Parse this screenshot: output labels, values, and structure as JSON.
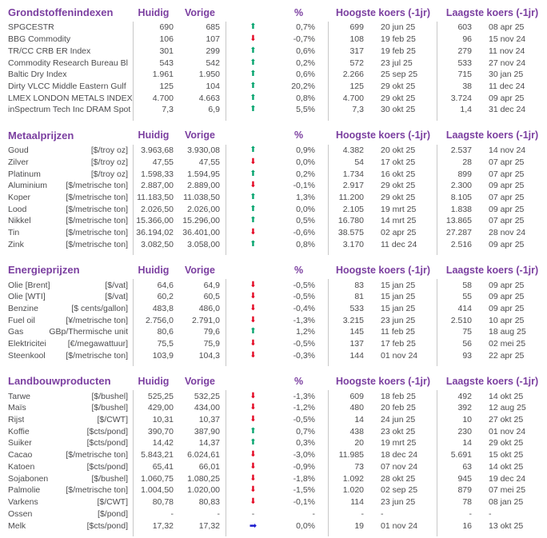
{
  "columns": {
    "huidig": "Huidig",
    "vorige": "Vorige",
    "pct": "%",
    "hoogste": "Hoogste koers (-1jr)",
    "laagste": "Laagste koers (-1jr)"
  },
  "icons": {
    "up": "⬆",
    "down": "⬇",
    "flat": "➡",
    "none": "-"
  },
  "colors": {
    "header_purple": "#7b3fa0",
    "text_gray": "#4c4c4e",
    "up_green": "#00a36c",
    "down_red": "#e3001e",
    "flat_blue": "#1a1ace",
    "divider_gray": "#c8c8c8"
  },
  "sections": [
    {
      "title": "Grondstoffenindexen",
      "rows": [
        {
          "name": "SPGCESTR",
          "unit": "",
          "huidig": "690",
          "vorige": "685",
          "dir": "up",
          "pct": "0,7%",
          "hi": "699",
          "hi_date": "20 jun 25",
          "lo": "603",
          "lo_date": "08 apr 25"
        },
        {
          "name": "BBG Commodity",
          "unit": "",
          "huidig": "106",
          "vorige": "107",
          "dir": "down",
          "pct": "-0,7%",
          "hi": "108",
          "hi_date": "19 feb 25",
          "lo": "96",
          "lo_date": "15 nov 24"
        },
        {
          "name": "TR/CC CRB ER Index",
          "unit": "",
          "huidig": "301",
          "vorige": "299",
          "dir": "up",
          "pct": "0,6%",
          "hi": "317",
          "hi_date": "19 feb 25",
          "lo": "279",
          "lo_date": "11 nov 24"
        },
        {
          "name": "Commodity Research Bureau Bl",
          "unit": "",
          "huidig": "543",
          "vorige": "542",
          "dir": "up",
          "pct": "0,2%",
          "hi": "572",
          "hi_date": "23 jul 25",
          "lo": "533",
          "lo_date": "27 nov 24"
        },
        {
          "name": "Baltic Dry Index",
          "unit": "",
          "huidig": "1.961",
          "vorige": "1.950",
          "dir": "up",
          "pct": "0,6%",
          "hi": "2.266",
          "hi_date": "25 sep 25",
          "lo": "715",
          "lo_date": "30 jan 25"
        },
        {
          "name": "Dirty VLCC Middle Eastern Gulf",
          "unit": "",
          "huidig": "125",
          "vorige": "104",
          "dir": "up",
          "pct": "20,2%",
          "hi": "125",
          "hi_date": "29 okt 25",
          "lo": "38",
          "lo_date": "11 dec 24"
        },
        {
          "name": "LMEX LONDON METALS INDEX",
          "unit": "",
          "huidig": "4.700",
          "vorige": "4.663",
          "dir": "up",
          "pct": "0,8%",
          "hi": "4.700",
          "hi_date": "29 okt 25",
          "lo": "3.724",
          "lo_date": "09 apr 25"
        },
        {
          "name": "inSpectrum Tech Inc DRAM Spot",
          "unit": "",
          "huidig": "7,3",
          "vorige": "6,9",
          "dir": "up",
          "pct": "5,5%",
          "hi": "7,3",
          "hi_date": "30 okt 25",
          "lo": "1,4",
          "lo_date": "31 dec 24"
        }
      ]
    },
    {
      "title": "Metaalprijzen",
      "rows": [
        {
          "name": "Goud",
          "unit": "[$/troy oz]",
          "huidig": "3.963,68",
          "vorige": "3.930,08",
          "dir": "up",
          "pct": "0,9%",
          "hi": "4.382",
          "hi_date": "20 okt 25",
          "lo": "2.537",
          "lo_date": "14 nov 24"
        },
        {
          "name": "Zilver",
          "unit": "[$/troy oz]",
          "huidig": "47,55",
          "vorige": "47,55",
          "dir": "down",
          "pct": "0,0%",
          "hi": "54",
          "hi_date": "17 okt 25",
          "lo": "28",
          "lo_date": "07 apr 25"
        },
        {
          "name": "Platinum",
          "unit": "[$/troy oz]",
          "huidig": "1.598,33",
          "vorige": "1.594,95",
          "dir": "up",
          "pct": "0,2%",
          "hi": "1.734",
          "hi_date": "16 okt 25",
          "lo": "899",
          "lo_date": "07 apr 25"
        },
        {
          "name": "Aluminium",
          "unit": "[$/metrische ton]",
          "huidig": "2.887,00",
          "vorige": "2.889,00",
          "dir": "down",
          "pct": "-0,1%",
          "hi": "2.917",
          "hi_date": "29 okt 25",
          "lo": "2.300",
          "lo_date": "09 apr 25"
        },
        {
          "name": "Koper",
          "unit": "[$/metrische ton]",
          "huidig": "11.183,50",
          "vorige": "11.038,50",
          "dir": "up",
          "pct": "1,3%",
          "hi": "11.200",
          "hi_date": "29 okt 25",
          "lo": "8.105",
          "lo_date": "07 apr 25"
        },
        {
          "name": "Lood",
          "unit": "[$/metrische ton]",
          "huidig": "2.026,50",
          "vorige": "2.026,00",
          "dir": "up",
          "pct": "0,0%",
          "hi": "2.105",
          "hi_date": "19 mrt 25",
          "lo": "1.838",
          "lo_date": "09 apr 25"
        },
        {
          "name": "Nikkel",
          "unit": "[$/metrische ton]",
          "huidig": "15.366,00",
          "vorige": "15.296,00",
          "dir": "up",
          "pct": "0,5%",
          "hi": "16.780",
          "hi_date": "14 mrt 25",
          "lo": "13.865",
          "lo_date": "07 apr 25"
        },
        {
          "name": "Tin",
          "unit": "[$/metrische ton]",
          "huidig": "36.194,02",
          "vorige": "36.401,00",
          "dir": "down",
          "pct": "-0,6%",
          "hi": "38.575",
          "hi_date": "02 apr 25",
          "lo": "27.287",
          "lo_date": "28 nov 24"
        },
        {
          "name": "Zink",
          "unit": "[$/metrische ton]",
          "huidig": "3.082,50",
          "vorige": "3.058,00",
          "dir": "up",
          "pct": "0,8%",
          "hi": "3.170",
          "hi_date": "11 dec 24",
          "lo": "2.516",
          "lo_date": "09 apr 25"
        }
      ]
    },
    {
      "title": "Energieprijzen",
      "rows": [
        {
          "name": "Olie [Brent]",
          "unit": "[$/vat]",
          "huidig": "64,6",
          "vorige": "64,9",
          "dir": "down",
          "pct": "-0,5%",
          "hi": "83",
          "hi_date": "15 jan 25",
          "lo": "58",
          "lo_date": "09 apr 25"
        },
        {
          "name": "Olie [WTI]",
          "unit": "[$/vat]",
          "huidig": "60,2",
          "vorige": "60,5",
          "dir": "down",
          "pct": "-0,5%",
          "hi": "81",
          "hi_date": "15 jan 25",
          "lo": "55",
          "lo_date": "09 apr 25"
        },
        {
          "name": "Benzine",
          "unit": "[$ cents/gallon]",
          "huidig": "483,8",
          "vorige": "486,0",
          "dir": "down",
          "pct": "-0,4%",
          "hi": "533",
          "hi_date": "15 jan 25",
          "lo": "414",
          "lo_date": "09 apr 25"
        },
        {
          "name": "Fuel oil",
          "unit": "[¥/metrische ton]",
          "huidig": "2.756,0",
          "vorige": "2.791,0",
          "dir": "down",
          "pct": "-1,3%",
          "hi": "3.215",
          "hi_date": "23 jun 25",
          "lo": "2.510",
          "lo_date": "10 apr 25"
        },
        {
          "name": "Gas",
          "unit": "GBp/Thermische unit",
          "huidig": "80,6",
          "vorige": "79,6",
          "dir": "up",
          "pct": "1,2%",
          "hi": "145",
          "hi_date": "11 feb 25",
          "lo": "75",
          "lo_date": "18 aug 25"
        },
        {
          "name": "Elektricitei",
          "unit": "[€/megawattuur]",
          "huidig": "75,5",
          "vorige": "75,9",
          "dir": "down",
          "pct": "-0,5%",
          "hi": "137",
          "hi_date": "17 feb 25",
          "lo": "56",
          "lo_date": "02 mei 25"
        },
        {
          "name": "Steenkool",
          "unit": "[$/metrische ton]",
          "huidig": "103,9",
          "vorige": "104,3",
          "dir": "down",
          "pct": "-0,3%",
          "hi": "144",
          "hi_date": "01 nov 24",
          "lo": "93",
          "lo_date": "22 apr 25"
        }
      ]
    },
    {
      "title": "Landbouwproducten",
      "rows": [
        {
          "name": "Tarwe",
          "unit": "[$/bushel]",
          "huidig": "525,25",
          "vorige": "532,25",
          "dir": "down",
          "pct": "-1,3%",
          "hi": "609",
          "hi_date": "18 feb 25",
          "lo": "492",
          "lo_date": "14 okt 25"
        },
        {
          "name": "Maïs",
          "unit": "[$/bushel]",
          "huidig": "429,00",
          "vorige": "434,00",
          "dir": "down",
          "pct": "-1,2%",
          "hi": "480",
          "hi_date": "20 feb 25",
          "lo": "392",
          "lo_date": "12 aug 25"
        },
        {
          "name": "Rijst",
          "unit": "[$/CWT]",
          "huidig": "10,31",
          "vorige": "10,37",
          "dir": "down",
          "pct": "-0,5%",
          "hi": "14",
          "hi_date": "24 jun 25",
          "lo": "10",
          "lo_date": "27 okt 25"
        },
        {
          "name": "Koffie",
          "unit": "[$cts/pond]",
          "huidig": "390,70",
          "vorige": "387,90",
          "dir": "up",
          "pct": "0,7%",
          "hi": "438",
          "hi_date": "23 okt 25",
          "lo": "230",
          "lo_date": "01 nov 24"
        },
        {
          "name": "Suiker",
          "unit": "[$cts/pond]",
          "huidig": "14,42",
          "vorige": "14,37",
          "dir": "up",
          "pct": "0,3%",
          "hi": "20",
          "hi_date": "19 mrt 25",
          "lo": "14",
          "lo_date": "29 okt 25"
        },
        {
          "name": "Cacao",
          "unit": "[$/metrische ton]",
          "huidig": "5.843,21",
          "vorige": "6.024,61",
          "dir": "down",
          "pct": "-3,0%",
          "hi": "11.985",
          "hi_date": "18 dec 24",
          "lo": "5.691",
          "lo_date": "15 okt 25"
        },
        {
          "name": "Katoen",
          "unit": "[$cts/pond]",
          "huidig": "65,41",
          "vorige": "66,01",
          "dir": "down",
          "pct": "-0,9%",
          "hi": "73",
          "hi_date": "07 nov 24",
          "lo": "63",
          "lo_date": "14 okt 25"
        },
        {
          "name": "Sojabonen",
          "unit": "[$/bushel]",
          "huidig": "1.060,75",
          "vorige": "1.080,25",
          "dir": "down",
          "pct": "-1,8%",
          "hi": "1.092",
          "hi_date": "28 okt 25",
          "lo": "945",
          "lo_date": "19 dec 24"
        },
        {
          "name": "Palmolie",
          "unit": "[$/metrische ton]",
          "huidig": "1.004,50",
          "vorige": "1.020,00",
          "dir": "down",
          "pct": "-1,5%",
          "hi": "1.020",
          "hi_date": "02 sep 25",
          "lo": "879",
          "lo_date": "07 mei 25"
        },
        {
          "name": "Varkens",
          "unit": "[$/CWT]",
          "huidig": "80,78",
          "vorige": "80,83",
          "dir": "down",
          "pct": "-0,1%",
          "hi": "114",
          "hi_date": "23 jun 25",
          "lo": "78",
          "lo_date": "08 jan 25"
        },
        {
          "name": "Ossen",
          "unit": "[$/pond]",
          "huidig": "-",
          "vorige": "-",
          "dir": "none",
          "pct": "-",
          "hi": "-",
          "hi_date": "-",
          "lo": "-",
          "lo_date": "-"
        },
        {
          "name": "Melk",
          "unit": "[$cts/pond]",
          "huidig": "17,32",
          "vorige": "17,32",
          "dir": "flat",
          "pct": "0,0%",
          "hi": "19",
          "hi_date": "01 nov 24",
          "lo": "16",
          "lo_date": "13 okt 25"
        }
      ]
    }
  ]
}
